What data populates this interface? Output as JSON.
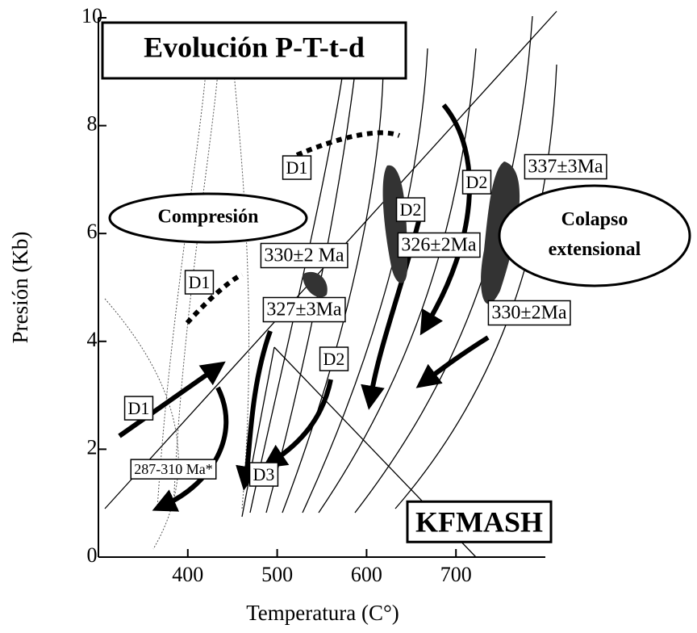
{
  "chart_data": {
    "type": "pt-diagram",
    "title": "Evolución P-T-t-d",
    "x_label": "Temperatura (C°)",
    "y_label": "Presión (Kb)",
    "xlim": [
      300,
      800
    ],
    "xticks": [
      400,
      500,
      600,
      700
    ],
    "ylim": [
      0,
      10
    ],
    "yticks": [
      0,
      2,
      4,
      6,
      8,
      10
    ],
    "annotations": [
      "Compresión",
      [
        "Colapso",
        "extensional"
      ],
      "KFMASH",
      "D1",
      "D1",
      "D1",
      "D2",
      "D2",
      "D2",
      "D3",
      "337±3Ma",
      "330±2 Ma",
      "326±2Ma",
      "327±3Ma",
      "330±2Ma",
      "287-310 Ma*"
    ]
  }
}
